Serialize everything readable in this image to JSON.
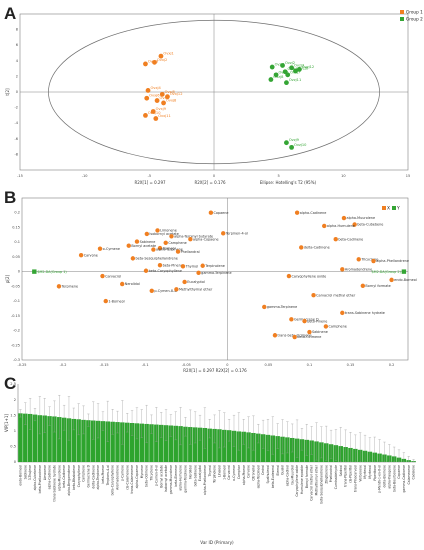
{
  "panels": {
    "a": "A",
    "b": "B",
    "c": "C"
  },
  "colors": {
    "group1": "#f07f21",
    "group2": "#34a534",
    "bar": "#2ea42e",
    "ellipse": "#6f6f6f",
    "axis": "#808080",
    "err": "#9a9a9a"
  },
  "chart_data": [
    {
      "type": "scatter",
      "xlabel": "R2X[1] = 0.297",
      "xlabel2": "R2X[2] = 0.176",
      "xlabel3": "Ellipse: Hotelling's T2 (95%)",
      "ylabel": "t[2]",
      "xlim": [
        -15,
        15
      ],
      "ylim": [
        -10,
        10
      ],
      "xticks": [
        -15,
        -10,
        -5,
        0,
        5,
        10,
        15
      ],
      "yticks": [
        -8,
        -6,
        -4,
        -2,
        0,
        2,
        4,
        6,
        8
      ],
      "legend": {
        "placement": "top-right",
        "entries": [
          "Group 1",
          "Group 2"
        ]
      },
      "series": [
        {
          "name": "Group 1",
          "points": [
            {
              "x": -4.1,
              "y": 4.6,
              "label": "Ovxj1"
            },
            {
              "x": -4.6,
              "y": 3.8,
              "label": "Ovxj2"
            },
            {
              "x": -5.3,
              "y": 3.6,
              "label": "Ovxj3"
            },
            {
              "x": -5.1,
              "y": 0.2,
              "label": "Ovxj4"
            },
            {
              "x": -4.0,
              "y": -0.3,
              "label": "Ovxj5"
            },
            {
              "x": -5.2,
              "y": -0.8,
              "label": "Ovxj6"
            },
            {
              "x": -4.4,
              "y": -1.1,
              "label": "Ovxj7"
            },
            {
              "x": -3.9,
              "y": -1.4,
              "label": "Ovxj8"
            },
            {
              "x": -4.7,
              "y": -2.5,
              "label": "Ovxj9"
            },
            {
              "x": -5.3,
              "y": -3.0,
              "label": "Ovxj10"
            },
            {
              "x": -4.5,
              "y": -3.4,
              "label": "Ovxj11"
            },
            {
              "x": -3.6,
              "y": -0.6,
              "label": "Ovxj12"
            }
          ]
        },
        {
          "name": "Group 2",
          "points": [
            {
              "x": 4.5,
              "y": 3.2,
              "label": "Ovzj1"
            },
            {
              "x": 5.3,
              "y": 3.4,
              "label": "Ovzj2"
            },
            {
              "x": 6.0,
              "y": 3.1,
              "label": "Ovzj3"
            },
            {
              "x": 5.5,
              "y": 2.6,
              "label": "Ovzj4"
            },
            {
              "x": 4.8,
              "y": 2.2,
              "label": "Ovzj5"
            },
            {
              "x": 6.3,
              "y": 2.7,
              "label": "Ovzj6"
            },
            {
              "x": 5.7,
              "y": 2.2,
              "label": "Ovzj7"
            },
            {
              "x": 4.4,
              "y": 1.6,
              "label": "Ovzj8"
            },
            {
              "x": 5.6,
              "y": -6.5,
              "label": "Ovzj9"
            },
            {
              "x": 6.0,
              "y": -7.1,
              "label": "Ovzj10"
            },
            {
              "x": 5.6,
              "y": 1.2,
              "label": "Ovzj11"
            },
            {
              "x": 6.6,
              "y": 2.9,
              "label": "Ovzj12"
            }
          ]
        }
      ]
    },
    {
      "type": "scatter",
      "xlabel": "R2X[1] = 0.297   R2X[2] = 0.176",
      "ylabel": "p[2]",
      "xlim": [
        -0.25,
        0.22
      ],
      "ylim": [
        -0.3,
        0.25
      ],
      "xticks": [
        -0.25,
        -0.2,
        -0.15,
        -0.1,
        -0.05,
        0,
        0.05,
        0.1,
        0.15,
        0.2
      ],
      "yticks": [
        -0.3,
        -0.25,
        -0.2,
        -0.15,
        -0.1,
        -0.05,
        0,
        0.05,
        0.1,
        0.15,
        0.2
      ],
      "legend": {
        "placement": "top-right",
        "entries": [
          "X",
          "Y"
        ]
      },
      "series": [
        {
          "name": "X",
          "points": [
            {
              "x": -0.02,
              "y": 0.2,
              "label": "Copaene"
            },
            {
              "x": -0.005,
              "y": 0.13,
              "label": "Terpinen-4-ol"
            },
            {
              "x": -0.085,
              "y": 0.14,
              "label": "Limonene"
            },
            {
              "x": -0.098,
              "y": 0.128,
              "label": "Isobornyl acetate"
            },
            {
              "x": -0.068,
              "y": 0.12,
              "label": "alpha-Terpinyl butyrate"
            },
            {
              "x": -0.045,
              "y": 0.11,
              "label": "alpha-Copaene"
            },
            {
              "x": -0.11,
              "y": 0.102,
              "label": "Sabinene"
            },
            {
              "x": -0.075,
              "y": 0.098,
              "label": "Camphene"
            },
            {
              "x": -0.12,
              "y": 0.088,
              "label": "Bornyl acetate"
            },
            {
              "x": -0.082,
              "y": 0.08,
              "label": "Borneol"
            },
            {
              "x": -0.09,
              "y": 0.075,
              "label": "alpha-Terpinene"
            },
            {
              "x": -0.06,
              "y": 0.068,
              "label": "Phellandral"
            },
            {
              "x": -0.155,
              "y": 0.078,
              "label": "o-Cymene"
            },
            {
              "x": -0.178,
              "y": 0.056,
              "label": "Carvone"
            },
            {
              "x": -0.115,
              "y": 0.045,
              "label": "beta-Sesquiphellandrene"
            },
            {
              "x": -0.082,
              "y": 0.022,
              "label": "beta-Pinene"
            },
            {
              "x": -0.099,
              "y": 0.003,
              "label": "beta-Caryophyllene"
            },
            {
              "x": -0.054,
              "y": 0.018,
              "label": "Thymol"
            },
            {
              "x": -0.03,
              "y": 0.02,
              "label": "Terpinolene"
            },
            {
              "x": -0.035,
              "y": -0.004,
              "label": "gamma-Terpinene"
            },
            {
              "x": -0.152,
              "y": -0.015,
              "label": "Carvacrol"
            },
            {
              "x": -0.128,
              "y": -0.042,
              "label": "Nerolidol"
            },
            {
              "x": -0.092,
              "y": -0.065,
              "label": "p-Cymen-8-ol"
            },
            {
              "x": -0.062,
              "y": -0.06,
              "label": "Methylthymyl ether"
            },
            {
              "x": -0.052,
              "y": -0.035,
              "label": "Eucalyptol"
            },
            {
              "x": -0.148,
              "y": -0.1,
              "label": "1-Borneol"
            },
            {
              "x": -0.205,
              "y": -0.05,
              "label": "Terpinene"
            },
            {
              "x": 0.085,
              "y": 0.2,
              "label": "alpha-Cadinene"
            },
            {
              "x": 0.142,
              "y": 0.182,
              "label": "alpha-Muurolene"
            },
            {
              "x": 0.155,
              "y": 0.16,
              "label": "beta-Cubebene"
            },
            {
              "x": 0.118,
              "y": 0.155,
              "label": "alpha-Humulene"
            },
            {
              "x": 0.132,
              "y": 0.11,
              "label": "beta-Cadinene"
            },
            {
              "x": 0.09,
              "y": 0.082,
              "label": "delta-Cadinene"
            },
            {
              "x": 0.16,
              "y": 0.042,
              "label": "Tricyclene"
            },
            {
              "x": 0.075,
              "y": -0.015,
              "label": "Caryophyllene oxide"
            },
            {
              "x": 0.14,
              "y": 0.008,
              "label": "Aromadendrene"
            },
            {
              "x": 0.178,
              "y": 0.036,
              "label": "alpha-Phellandrene"
            },
            {
              "x": 0.2,
              "y": -0.028,
              "label": "endo-Borneol"
            },
            {
              "x": 0.165,
              "y": -0.048,
              "label": "Bornyl formate"
            },
            {
              "x": 0.105,
              "y": -0.08,
              "label": "Carvacrol methyl ether"
            },
            {
              "x": 0.045,
              "y": -0.12,
              "label": "gamma-Terpinene"
            },
            {
              "x": 0.078,
              "y": -0.162,
              "label": "Germacrene D"
            },
            {
              "x": 0.094,
              "y": -0.168,
              "label": "beta-Pinene"
            },
            {
              "x": 0.14,
              "y": -0.14,
              "label": "trans-Sabinene hydrate"
            },
            {
              "x": 0.12,
              "y": -0.186,
              "label": "Camphene"
            },
            {
              "x": 0.058,
              "y": -0.216,
              "label": "trans-beta-Ocimene"
            },
            {
              "x": 0.082,
              "y": -0.222,
              "label": "beta-Ocimene"
            },
            {
              "x": 0.1,
              "y": -0.205,
              "label": "Sabinene"
            }
          ]
        },
        {
          "name": "Y",
          "points": [
            {
              "x": -0.235,
              "y": 0.0,
              "label": "$M2.DA(Group 1)"
            },
            {
              "x": 0.215,
              "y": 0.0,
              "label": "$M2.DA(Group 2)"
            }
          ]
        }
      ]
    },
    {
      "type": "bar",
      "xlabel": "Var ID (Primary)",
      "ylabel": "VIP[1+1]",
      "ylim": [
        0,
        2.5
      ],
      "yticks": [
        0,
        0.5,
        1,
        1.5,
        2,
        2.5
      ],
      "categories": [
        "endo-Borneol",
        "Sabinene",
        "3-Thujene",
        "alpha-Cubebene",
        "beta-Phellandrene",
        "Limonene",
        "alpha-Cadinene",
        "trans-Sabinene hydrate",
        "alpha-Muurolene",
        "beta-Cadinene",
        "alpha-Bergamotene",
        "beta-Bisabolene",
        "Caryophyllene",
        "Camphene",
        "Germacrene D",
        "delta-Cadinene",
        "alpha-Terpinene",
        "beta-Pinene",
        "Terpinen-4-ol",
        "beta-Caryophyllene",
        "Aromadendrene",
        "p-Cymene",
        "cis-Calamenene",
        "trans-Calamenene",
        "alpha-Copaene",
        "Myrcene",
        "beta-Ocimene",
        "Tricyclene",
        "p-Cymen-8-ol",
        "Bornyl acetate",
        "Isobornyl acetate",
        "gamma-Muurolene",
        "beta-Elemene",
        "alpha-Humulene",
        "gamma-Terpinene",
        "Nerolidol",
        "beta-Selinene",
        "Eucalyptol",
        "alpha-Phellandrene",
        "Thymol",
        "Terpinolene",
        "Linalool",
        "1-Borneol",
        "Carvacrol",
        "o-Cymene",
        "Camphor",
        "alpha-Pinene",
        "Carvone",
        "Citronellal",
        "alpha-Terpineol",
        "Cedrol",
        "Spathulenol",
        "beta-Eudesmol",
        "Elemol",
        "Guaiol",
        "alpha-Cadinol",
        "tau-Muurolol",
        "Caryophyllene oxide",
        "Humulene epoxide",
        "Bornyl formate",
        "Carvacrol methyl ether",
        "Methylthymyl ether",
        "beta-Sesquiphellandrene",
        "Zingiberene",
        "Phellandral",
        "Cuminaldehyde",
        "Sabinol",
        "trans-Piperitol",
        "cis-Piperitol",
        "trans-Pinocarveol",
        "Verbenone",
        "Myrtenal",
        "Myrtenol",
        "Piperitone",
        "p-Menth-1-en-8-ol",
        "delta-Elemene",
        "alpha-Ylangene",
        "beta-Bourbonene",
        "Copaene",
        "gamma-Cadinene",
        "Calamenene",
        "Cadalene"
      ],
      "values": [
        1.56,
        1.55,
        1.54,
        1.52,
        1.5,
        1.49,
        1.47,
        1.46,
        1.44,
        1.42,
        1.4,
        1.38,
        1.37,
        1.35,
        1.34,
        1.33,
        1.32,
        1.31,
        1.3,
        1.29,
        1.28,
        1.27,
        1.26,
        1.25,
        1.24,
        1.23,
        1.22,
        1.21,
        1.2,
        1.19,
        1.18,
        1.17,
        1.16,
        1.15,
        1.13,
        1.12,
        1.11,
        1.1,
        1.09,
        1.07,
        1.06,
        1.05,
        1.03,
        1.02,
        1.0,
        0.98,
        0.97,
        0.95,
        0.93,
        0.91,
        0.89,
        0.87,
        0.85,
        0.83,
        0.81,
        0.79,
        0.77,
        0.75,
        0.73,
        0.71,
        0.69,
        0.66,
        0.63,
        0.6,
        0.57,
        0.54,
        0.51,
        0.48,
        0.45,
        0.42,
        0.39,
        0.36,
        0.33,
        0.3,
        0.27,
        0.24,
        0.21,
        0.18,
        0.14,
        0.1,
        0.06,
        0.03
      ],
      "errors": [
        0.12,
        0.35,
        0.5,
        0.2,
        0.6,
        0.55,
        0.3,
        0.5,
        0.7,
        0.4,
        0.7,
        0.35,
        0.5,
        0.45,
        0.2,
        0.6,
        0.55,
        0.3,
        0.65,
        0.4,
        0.35,
        0.7,
        0.3,
        0.4,
        0.5,
        0.45,
        0.6,
        0.3,
        0.55,
        0.4,
        0.5,
        0.35,
        0.45,
        0.6,
        0.3,
        0.55,
        0.5,
        0.4,
        0.65,
        0.3,
        0.45,
        0.6,
        0.55,
        0.35,
        0.5,
        0.6,
        0.4,
        0.5,
        0.55,
        0.3,
        0.45,
        0.5,
        0.6,
        0.4,
        0.55,
        0.5,
        0.45,
        0.6,
        0.35,
        0.5,
        0.45,
        0.6,
        0.5,
        0.55,
        0.45,
        0.5,
        0.6,
        0.55,
        0.5,
        0.45,
        0.55,
        0.5,
        0.45,
        0.5,
        0.45,
        0.4,
        0.35,
        0.3,
        0.25,
        0.2,
        0.12,
        0.05
      ]
    }
  ]
}
